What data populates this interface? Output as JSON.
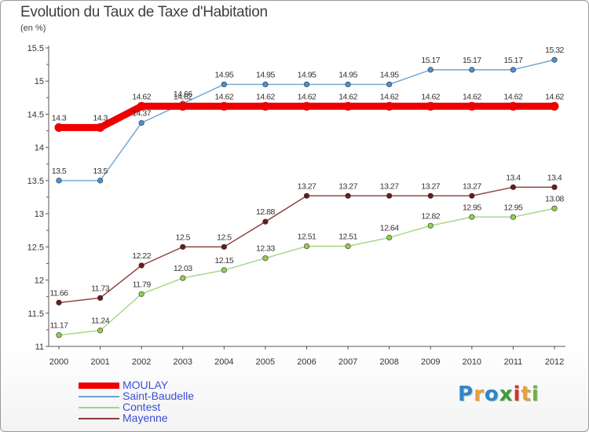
{
  "title": "Evolution du Taux de Taxe d'Habitation",
  "subtitle": "(en %)",
  "brand": [
    "P",
    "r",
    "o",
    "x",
    "i",
    "t",
    "i"
  ],
  "chart_data": {
    "type": "line",
    "title": "Evolution du Taux de Taxe d'Habitation",
    "ylabel": "(en %)",
    "xlabel": "",
    "x": [
      2000,
      2001,
      2002,
      2003,
      2004,
      2005,
      2006,
      2007,
      2008,
      2009,
      2010,
      2011,
      2012
    ],
    "ylim": [
      11,
      15.5
    ],
    "yticks": [
      "11",
      "11.5",
      "12",
      "12.5",
      "13",
      "13.5",
      "14",
      "14.5",
      "15",
      "15.5"
    ],
    "grid": false,
    "legend_position": "bottom-left",
    "series": [
      {
        "name": "MOULAY",
        "color": "#ee0000",
        "values": [
          14.3,
          14.3,
          14.62,
          14.62,
          14.62,
          14.62,
          14.62,
          14.62,
          14.62,
          14.62,
          14.62,
          14.62,
          14.62
        ],
        "labels": [
          "14.3",
          "14.3",
          "14.62",
          "14.62",
          "14.62",
          "14.62",
          "14.62",
          "14.62",
          "14.62",
          "14.62",
          "14.62",
          "14.62",
          "14.62"
        ]
      },
      {
        "name": "Saint-Baudelle",
        "color": "#6fa3cf",
        "marker": "#4a90d0",
        "values": [
          13.5,
          13.5,
          14.37,
          14.66,
          14.95,
          14.95,
          14.95,
          14.95,
          14.95,
          15.17,
          15.17,
          15.17,
          15.32
        ],
        "labels": [
          "13.5",
          "13.5",
          "14.37",
          "14.66",
          "14.95",
          "14.95",
          "14.95",
          "14.95",
          "14.95",
          "15.17",
          "15.17",
          "15.17",
          "15.32"
        ]
      },
      {
        "name": "Contest",
        "color": "#a4d67c",
        "marker": "#8fcf4f",
        "values": [
          11.17,
          11.24,
          11.79,
          12.03,
          12.15,
          12.33,
          12.51,
          12.51,
          12.64,
          12.82,
          12.95,
          12.95,
          13.08
        ],
        "labels": [
          "11.17",
          "11.24",
          "11.79",
          "12.03",
          "12.15",
          "12.33",
          "12.51",
          "12.51",
          "12.64",
          "12.82",
          "12.95",
          "12.95",
          "13.08"
        ]
      },
      {
        "name": "Mayenne",
        "color": "#8b3a3a",
        "marker": "#6b1a1a",
        "values": [
          11.66,
          11.73,
          12.22,
          12.5,
          12.5,
          12.88,
          13.27,
          13.27,
          13.27,
          13.27,
          13.27,
          13.4,
          13.4
        ],
        "labels": [
          "11.66",
          "11.73",
          "12.22",
          "12.5",
          "12.5",
          "12.88",
          "13.27",
          "13.27",
          "13.27",
          "13.27",
          "13.27",
          "13.4",
          "13.4"
        ]
      }
    ]
  }
}
